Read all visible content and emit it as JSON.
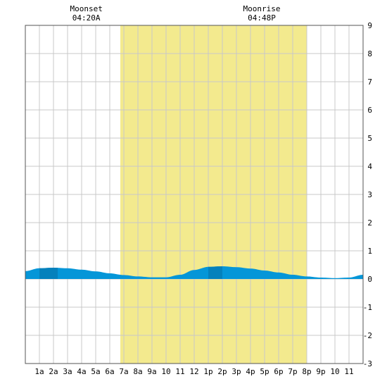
{
  "chart_data": {
    "type": "area",
    "annotations": {
      "moonset": {
        "label": "Moonset",
        "time": "04:20A",
        "hour": 4.333
      },
      "moonrise": {
        "label": "Moonrise",
        "time": "04:48P",
        "hour": 16.8
      }
    },
    "daylight": {
      "start_hour": 6.75,
      "end_hour": 20.0
    },
    "x_ticks": [
      {
        "hour": 1,
        "label": "1a"
      },
      {
        "hour": 2,
        "label": "2a"
      },
      {
        "hour": 3,
        "label": "3a"
      },
      {
        "hour": 4,
        "label": "4a"
      },
      {
        "hour": 5,
        "label": "5a"
      },
      {
        "hour": 6,
        "label": "6a"
      },
      {
        "hour": 7,
        "label": "7a"
      },
      {
        "hour": 8,
        "label": "8a"
      },
      {
        "hour": 9,
        "label": "9a"
      },
      {
        "hour": 10,
        "label": "10"
      },
      {
        "hour": 11,
        "label": "11"
      },
      {
        "hour": 12,
        "label": "12"
      },
      {
        "hour": 13,
        "label": "1p"
      },
      {
        "hour": 14,
        "label": "2p"
      },
      {
        "hour": 15,
        "label": "3p"
      },
      {
        "hour": 16,
        "label": "4p"
      },
      {
        "hour": 17,
        "label": "5p"
      },
      {
        "hour": 18,
        "label": "6p"
      },
      {
        "hour": 19,
        "label": "7p"
      },
      {
        "hour": 20,
        "label": "8p"
      },
      {
        "hour": 21,
        "label": "9p"
      },
      {
        "hour": 22,
        "label": "10"
      },
      {
        "hour": 23,
        "label": "11"
      }
    ],
    "xlim": [
      0,
      24
    ],
    "ylim": [
      -3,
      9
    ],
    "y_ticks": [
      -3,
      -2,
      -1,
      0,
      1,
      2,
      3,
      4,
      5,
      6,
      7,
      8,
      9
    ],
    "grid": true,
    "series": [
      {
        "x": [
          0,
          1,
          2,
          3,
          4,
          5,
          6,
          7,
          8,
          9,
          10,
          11,
          12,
          13,
          14,
          15,
          16,
          17,
          18,
          19,
          20,
          21,
          22,
          23,
          24
        ],
        "y": [
          0.28,
          0.38,
          0.4,
          0.38,
          0.33,
          0.27,
          0.2,
          0.14,
          0.09,
          0.06,
          0.06,
          0.15,
          0.32,
          0.43,
          0.45,
          0.42,
          0.37,
          0.3,
          0.23,
          0.15,
          0.09,
          0.05,
          0.03,
          0.05,
          0.15
        ]
      }
    ],
    "colors": {
      "daylight": "#f3ea8e",
      "night": "#ffffff",
      "tide_fill": "#0596d8",
      "tide_fill_dark": "#0581bc",
      "grid": "#c8c8c8",
      "border": "#555555"
    }
  }
}
